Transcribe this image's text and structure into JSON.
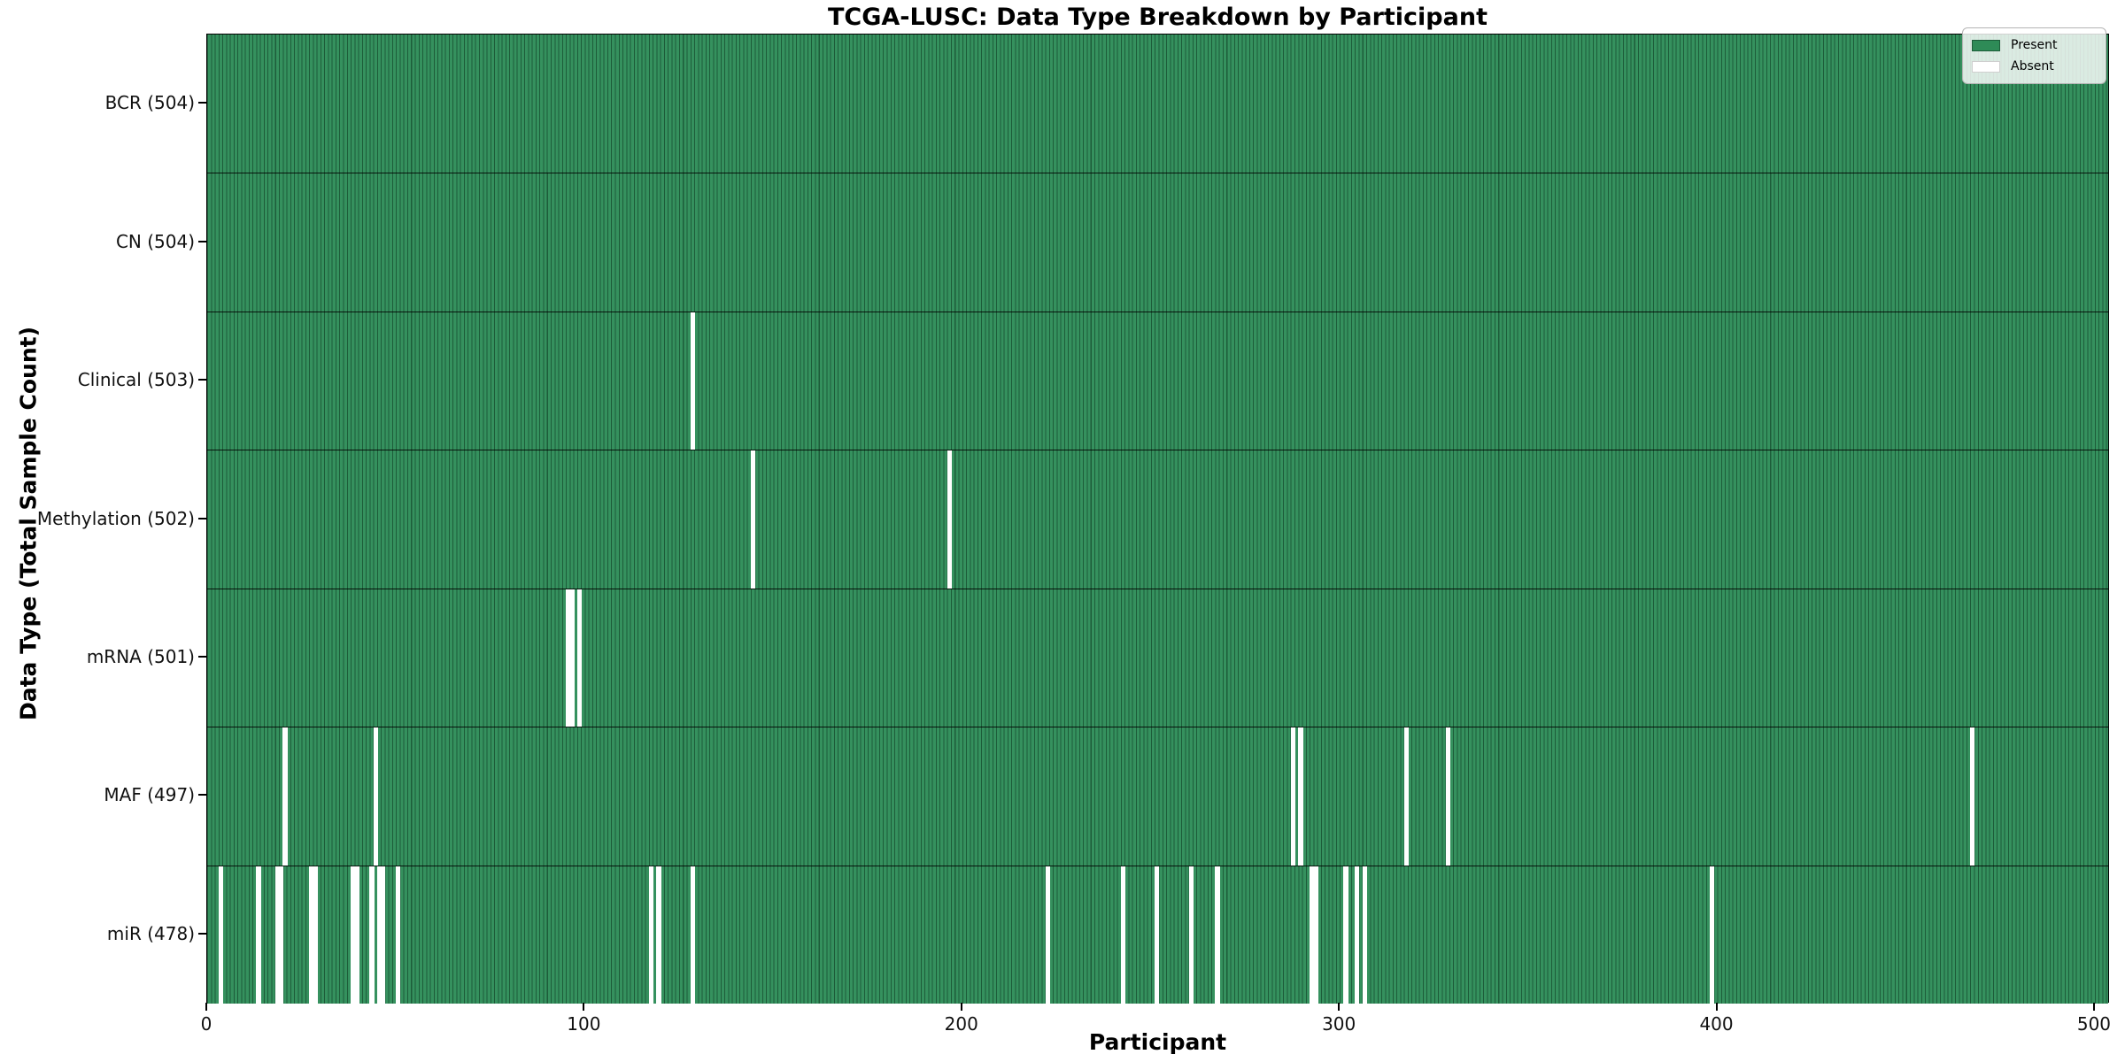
{
  "title": "TCGA-LUSC: Data Type Breakdown by Participant",
  "xlabel": "Participant",
  "ylabel": "Data Type (Total Sample Count)",
  "legend": {
    "items": [
      {
        "label": "Present",
        "color": "#2e8b57"
      },
      {
        "label": "Absent",
        "color": "#ffffff"
      }
    ]
  },
  "colors": {
    "present": "#35915e",
    "absent": "#ffffff",
    "bar_edge": "#1d5c39",
    "axis": "#000000"
  },
  "chart_data": {
    "type": "heatmap",
    "title": "TCGA-LUSC: Data Type Breakdown by Participant",
    "xlabel": "Participant",
    "ylabel": "Data Type (Total Sample Count)",
    "legend_position": "upper right",
    "legend": [
      {
        "label": "Present",
        "color": "#2e8b57"
      },
      {
        "label": "Absent",
        "color": "#ffffff"
      }
    ],
    "n_participants": 504,
    "xlim": [
      0,
      504
    ],
    "x_ticks": [
      0,
      100,
      200,
      300,
      400,
      500
    ],
    "grid": false,
    "rows": [
      {
        "label": "BCR (504)",
        "data_type": "BCR",
        "total": 504,
        "absent_participants": []
      },
      {
        "label": "CN (504)",
        "data_type": "CN",
        "total": 504,
        "absent_participants": []
      },
      {
        "label": "Clinical (503)",
        "data_type": "Clinical",
        "total": 503,
        "absent_participants": [
          128
        ]
      },
      {
        "label": "Methylation (502)",
        "data_type": "Methylation",
        "total": 502,
        "absent_participants": [
          144,
          196
        ]
      },
      {
        "label": "mRNA (501)",
        "data_type": "mRNA",
        "total": 501,
        "absent_participants": [
          95,
          96,
          98
        ]
      },
      {
        "label": "MAF (497)",
        "data_type": "MAF",
        "total": 497,
        "absent_participants": [
          20,
          44,
          287,
          289,
          317,
          328,
          467
        ]
      },
      {
        "label": "miR (478)",
        "data_type": "miR",
        "total": 478,
        "absent_participants": [
          3,
          13,
          18,
          19,
          27,
          28,
          38,
          39,
          43,
          45,
          46,
          50,
          117,
          119,
          128,
          222,
          242,
          251,
          260,
          267,
          292,
          293,
          301,
          304,
          306,
          398
        ]
      }
    ]
  }
}
